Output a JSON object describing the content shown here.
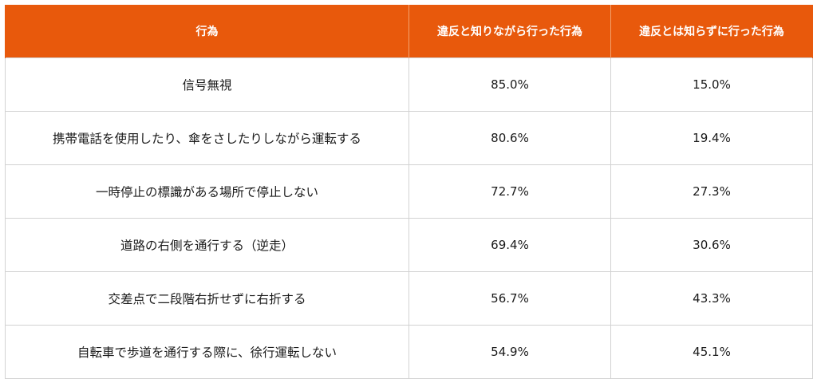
{
  "table": {
    "headers": [
      "行為",
      "違反と知りながら行った行為",
      "違反とは知らずに行った行為"
    ],
    "rows": [
      {
        "act": "信号無視",
        "knowing": "85.0%",
        "unknowing": "15.0%"
      },
      {
        "act": "携帯電話を使用したり、傘をさしたりしながら運転する",
        "knowing": "80.6%",
        "unknowing": "19.4%"
      },
      {
        "act": "一時停止の標識がある場所で停止しない",
        "knowing": "72.7%",
        "unknowing": "27.3%"
      },
      {
        "act": "道路の右側を通行する（逆走）",
        "knowing": "69.4%",
        "unknowing": "30.6%"
      },
      {
        "act": "交差点で二段階右折せずに右折する",
        "knowing": "56.7%",
        "unknowing": "43.3%"
      },
      {
        "act": "自転車で歩道を通行する際に、徐行運転しない",
        "knowing": "54.9%",
        "unknowing": "45.1%"
      }
    ]
  },
  "colors": {
    "header_bg": "#e8590c",
    "header_text": "#ffffff",
    "grid": "#d2d2d2"
  }
}
